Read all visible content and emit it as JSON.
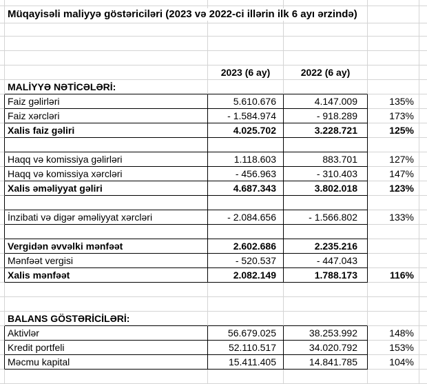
{
  "sheet": {
    "title": "Müqayisəli maliyyə göstəriciləri (2023 və 2022-ci illərin ilk 6 ayı ərzində)",
    "colors": {
      "gridline": "#d4d4d4",
      "table_border": "#000000",
      "text": "#000000",
      "background": "#ffffff"
    },
    "rows": [
      {
        "type": "title",
        "label": "Müqayisəli maliyyə göstəriciləri (2023 və 2022-ci illərin ilk 6 ayı ərzində)"
      },
      {
        "type": "blank"
      },
      {
        "type": "blank"
      },
      {
        "type": "blank"
      },
      {
        "type": "colheads",
        "v2023": "2023 (6 ay)",
        "v2022": "2022 (6 ay)"
      },
      {
        "type": "section",
        "label": "MALİYYƏ NƏTİCƏLƏRİ:"
      },
      {
        "type": "data",
        "block": true,
        "label": "Faiz gəlirləri",
        "v2023": "5.610.676",
        "v2022": "4.147.009",
        "pct": "135%"
      },
      {
        "type": "data",
        "block": true,
        "label": "Faiz xərcləri",
        "v2023": "- 1.584.974",
        "v2022": "- 918.289",
        "pct": "173%"
      },
      {
        "type": "total",
        "block": true,
        "label": "Xalis faiz gəliri",
        "v2023": "4.025.702",
        "v2022": "3.228.721",
        "pct": "125%"
      },
      {
        "type": "blank",
        "block": true
      },
      {
        "type": "data",
        "block": true,
        "label": "Haqq və komissiya gəlirləri",
        "v2023": "1.118.603",
        "v2022": "883.701",
        "pct": "127%"
      },
      {
        "type": "data",
        "block": true,
        "label": "Haqq və komissiya xərcləri",
        "v2023": "- 456.963",
        "v2022": "- 310.403",
        "pct": "147%"
      },
      {
        "type": "total",
        "block": true,
        "label": "Xalis əməliyyat gəliri",
        "v2023": "4.687.343",
        "v2022": "3.802.018",
        "pct": "123%"
      },
      {
        "type": "blank",
        "block": true
      },
      {
        "type": "data",
        "block": true,
        "label": "İnzibati və digər əməliyyat xərcləri",
        "v2023": "- 2.084.656",
        "v2022": "- 1.566.802",
        "pct": "133%"
      },
      {
        "type": "blank",
        "block": true
      },
      {
        "type": "total",
        "block": true,
        "label": "Vergidən əvvəlki mənfəət",
        "v2023": "2.602.686",
        "v2022": "2.235.216",
        "pct": ""
      },
      {
        "type": "data",
        "block": true,
        "label": "Mənfəət vergisi",
        "v2023": "- 520.537",
        "v2022": "- 447.043",
        "pct": ""
      },
      {
        "type": "total",
        "block": true,
        "label": "Xalis mənfəət",
        "v2023": "2.082.149",
        "v2022": "1.788.173",
        "pct": "116%"
      },
      {
        "type": "blank"
      },
      {
        "type": "blank"
      },
      {
        "type": "section",
        "label": "BALANS GÖSTƏRİCİLƏRİ:"
      },
      {
        "type": "data",
        "block": true,
        "label": "Aktivlər",
        "v2023": "56.679.025",
        "v2022": "38.253.992",
        "pct": "148%"
      },
      {
        "type": "data",
        "block": true,
        "label": "Kredit portfeli",
        "v2023": "52.110.517",
        "v2022": "34.020.792",
        "pct": "153%"
      },
      {
        "type": "data",
        "block": true,
        "label": "Məcmu kapital",
        "v2023": "15.411.405",
        "v2022": "14.841.785",
        "pct": "104%"
      },
      {
        "type": "blank"
      }
    ]
  }
}
